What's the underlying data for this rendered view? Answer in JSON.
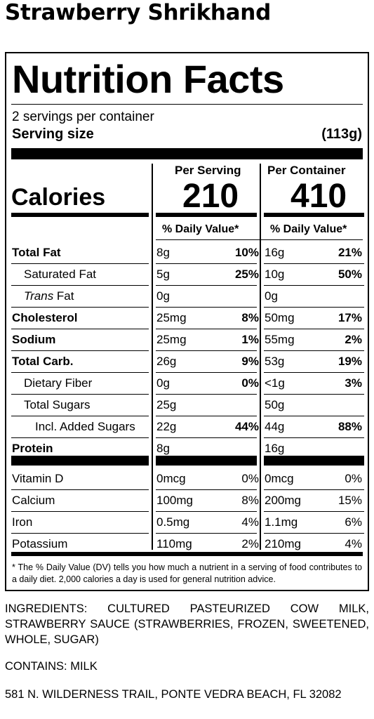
{
  "product_title": "Strawberry Shrikhand",
  "label": {
    "heading": "Nutrition Facts",
    "servings_per_container": "2 servings per container",
    "serving_size_label": "Serving size",
    "serving_size_value": "(113g)",
    "col_per_serving": "Per Serving",
    "col_per_container": "Per Container",
    "calories_label": "Calories",
    "calories_per_serving": "210",
    "calories_per_container": "410",
    "dv_header": "% Daily Value*",
    "rows": [
      {
        "name": "Total Fat",
        "amt1": "8g",
        "pct1": "10%",
        "amt2": "16g",
        "pct2": "21%"
      },
      {
        "name": "Saturated Fat",
        "amt1": "5g",
        "pct1": "25%",
        "amt2": "10g",
        "pct2": "50%"
      },
      {
        "name_italic": "Trans",
        "name_rest": " Fat",
        "amt1": "0g",
        "pct1": "",
        "amt2": "0g",
        "pct2": ""
      },
      {
        "name": "Cholesterol",
        "amt1": "25mg",
        "pct1": "8%",
        "amt2": "50mg",
        "pct2": "17%"
      },
      {
        "name": "Sodium",
        "amt1": "25mg",
        "pct1": "1%",
        "amt2": "55mg",
        "pct2": "2%"
      },
      {
        "name": "Total Carb.",
        "amt1": "26g",
        "pct1": "9%",
        "amt2": "53g",
        "pct2": "19%"
      },
      {
        "name": "Dietary Fiber",
        "amt1": "0g",
        "pct1": "0%",
        "amt2": "<1g",
        "pct2": "3%"
      },
      {
        "name": "Total Sugars",
        "amt1": "25g",
        "pct1": "",
        "amt2": "50g",
        "pct2": ""
      },
      {
        "name": "Incl. Added Sugars",
        "amt1": "22g",
        "pct1": "44%",
        "amt2": "44g",
        "pct2": "88%"
      },
      {
        "name": "Protein",
        "amt1": "8g",
        "pct1": "",
        "amt2": "16g",
        "pct2": ""
      }
    ],
    "vitamins": [
      {
        "name": "Vitamin D",
        "amt1": "0mcg",
        "pct1": "0%",
        "amt2": "0mcg",
        "pct2": "0%"
      },
      {
        "name": "Calcium",
        "amt1": "100mg",
        "pct1": "8%",
        "amt2": "200mg",
        "pct2": "15%"
      },
      {
        "name": "Iron",
        "amt1": "0.5mg",
        "pct1": "4%",
        "amt2": "1.1mg",
        "pct2": "6%"
      },
      {
        "name": "Potassium",
        "amt1": "110mg",
        "pct1": "2%",
        "amt2": "210mg",
        "pct2": "4%"
      }
    ],
    "footnote": "* The % Daily Value (DV) tells you how much a nutrient in a serving of food contributes to a daily diet. 2,000 calories a day is used for general nutrition advice."
  },
  "ingredients": "INGREDIENTS: CULTURED PASTEURIZED COW MILK, STRAWBERRY SAUCE (STRAWBERRIES, FROZEN, SWEETENED, WHOLE, SUGAR)",
  "contains": "CONTAINS: MILK",
  "address": "581 N. WILDERNESS TRAIL, PONTE VEDRA BEACH, FL 32082"
}
